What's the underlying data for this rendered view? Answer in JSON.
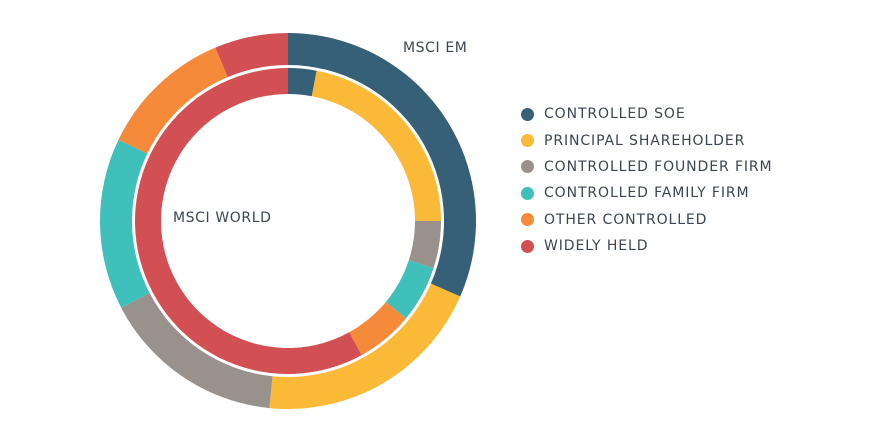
{
  "chart_data": {
    "type": "pie",
    "subtype": "nested-donut",
    "legend_position": "right",
    "categories": [
      "CONTROLLED SOE",
      "PRINCIPAL SHAREHOLDER",
      "CONTROLLED FOUNDER FIRM",
      "CONTROLLED FAMILY FIRM",
      "OTHER CONTROLLED",
      "WIDELY HELD"
    ],
    "colors": [
      "#365f78",
      "#fbb938",
      "#99928c",
      "#3fc0bb",
      "#f68a3b",
      "#d24f53"
    ],
    "series": [
      {
        "name": "MSCI EM",
        "ring": "outer",
        "values": [
          30,
          19,
          15,
          14,
          11,
          6
        ]
      },
      {
        "name": "MSCI WORLD",
        "ring": "inner",
        "values": [
          3,
          22,
          5,
          6,
          6,
          58
        ]
      }
    ]
  }
}
